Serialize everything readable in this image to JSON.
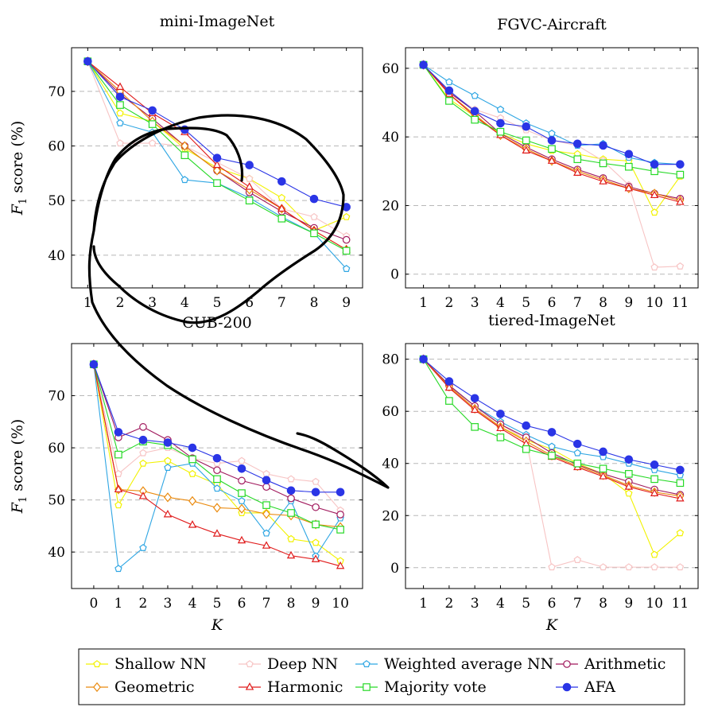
{
  "chart_data": [
    {
      "type": "line",
      "title": "mini-ImageNet",
      "ylabel": "F1 score (%)",
      "xlabel": "",
      "x": [
        1,
        2,
        3,
        4,
        5,
        6,
        7,
        8,
        9
      ],
      "xlim": [
        0.5,
        9.5
      ],
      "ylim": [
        34,
        78
      ],
      "yticks": [
        40,
        50,
        60,
        70
      ],
      "grid": "horizontal dashed",
      "series": [
        {
          "name": "Shallow NN",
          "values": [
            75.5,
            66,
            64.5,
            59.5,
            56,
            54,
            50.5,
            44.5,
            47
          ]
        },
        {
          "name": "Deep NN",
          "values": [
            75.5,
            60.5,
            60.5,
            60,
            57,
            54,
            48.5,
            47,
            43.5
          ]
        },
        {
          "name": "Weighted average NN",
          "values": [
            75.5,
            64.2,
            62.5,
            53.8,
            53.2,
            50.5,
            47,
            44,
            37.5
          ]
        },
        {
          "name": "Arithmetic",
          "values": [
            75.5,
            69.5,
            65,
            60,
            55.5,
            51.5,
            48,
            45,
            42.8
          ]
        },
        {
          "name": "Geometric",
          "values": [
            75.5,
            70,
            64.5,
            60,
            55.5,
            52,
            48.5,
            44.5,
            41
          ]
        },
        {
          "name": "Harmonic",
          "values": [
            75.5,
            70.8,
            66,
            62.5,
            56.5,
            52.5,
            48.5,
            44.5,
            41
          ]
        },
        {
          "name": "Majority vote",
          "values": [
            75.5,
            67.5,
            64,
            58.3,
            53.2,
            50,
            46.7,
            44,
            40.8
          ]
        },
        {
          "name": "AFA",
          "values": [
            75.5,
            69,
            66.5,
            63,
            57.8,
            56.5,
            53.5,
            50.3,
            48.8
          ]
        }
      ]
    },
    {
      "type": "line",
      "title": "FGVC-Aircraft",
      "ylabel": "",
      "xlabel": "",
      "x": [
        1,
        2,
        3,
        4,
        5,
        6,
        7,
        8,
        9,
        10,
        11
      ],
      "xlim": [
        0.3,
        11.7
      ],
      "ylim": [
        -4,
        66
      ],
      "yticks": [
        0,
        20,
        40,
        60
      ],
      "grid": "horizontal dashed",
      "series": [
        {
          "name": "Shallow NN",
          "values": [
            61,
            51,
            46,
            41,
            38,
            36,
            35,
            33.5,
            33,
            18,
            28.5
          ]
        },
        {
          "name": "Deep NN",
          "values": [
            61,
            53,
            48,
            45.5,
            42,
            39,
            37.5,
            33,
            26,
            2,
            2.3
          ]
        },
        {
          "name": "Weighted average NN",
          "values": [
            61,
            56,
            52,
            48,
            44,
            41,
            37.5,
            38,
            34,
            32.5,
            32
          ]
        },
        {
          "name": "Arithmetic",
          "values": [
            61,
            53,
            47.5,
            41,
            37,
            33.5,
            30.5,
            28,
            25.5,
            23.5,
            22
          ]
        },
        {
          "name": "Geometric",
          "values": [
            61,
            52.5,
            46.5,
            40.5,
            36.5,
            33,
            30,
            27.5,
            25,
            23.5,
            21.5
          ]
        },
        {
          "name": "Harmonic",
          "values": [
            61,
            52.5,
            46,
            40.5,
            36,
            33,
            29.5,
            27,
            25,
            23,
            21
          ]
        },
        {
          "name": "Majority vote",
          "values": [
            61,
            50.5,
            45,
            41.5,
            39,
            36.5,
            33.5,
            32.3,
            31.3,
            30,
            29
          ]
        },
        {
          "name": "AFA",
          "values": [
            61,
            53.5,
            47.5,
            44,
            43,
            39,
            38,
            37.5,
            35,
            32,
            32
          ]
        }
      ]
    },
    {
      "type": "line",
      "title": "CUB-200",
      "ylabel": "F1 score (%)",
      "xlabel": "K",
      "x": [
        0,
        1,
        2,
        3,
        4,
        5,
        6,
        7,
        8,
        9,
        10
      ],
      "xlim": [
        -0.9,
        10.9
      ],
      "ylim": [
        33,
        80
      ],
      "yticks": [
        40,
        50,
        60,
        70
      ],
      "grid": "horizontal dashed",
      "series": [
        {
          "name": "Shallow NN",
          "values": [
            76,
            49,
            57,
            57.5,
            55,
            53,
            47.5,
            47.5,
            42.5,
            41.8,
            38.3
          ]
        },
        {
          "name": "Deep NN",
          "values": [
            76,
            55,
            59,
            60,
            58,
            57,
            57.5,
            55,
            54,
            53.5,
            48
          ]
        },
        {
          "name": "Weighted average NN",
          "values": [
            76,
            36.8,
            40.8,
            56.2,
            57,
            52.2,
            49.8,
            43.6,
            49.8,
            39.2,
            46.5
          ]
        },
        {
          "name": "Arithmetic",
          "values": [
            76,
            62,
            64,
            61.5,
            58,
            55.7,
            53.7,
            52.5,
            50.3,
            48.6,
            47.2
          ]
        },
        {
          "name": "Geometric",
          "values": [
            76,
            52,
            51.7,
            50.5,
            49.8,
            48.5,
            48.3,
            47.3,
            47,
            45.3,
            44.8
          ]
        },
        {
          "name": "Harmonic",
          "values": [
            76,
            52,
            50.7,
            47.2,
            45.2,
            43.5,
            42.2,
            41.2,
            39.3,
            38.6,
            37.3
          ]
        },
        {
          "name": "Majority vote",
          "values": [
            76,
            58.7,
            61.2,
            60.5,
            57.8,
            54,
            51.3,
            49,
            47.5,
            45.3,
            44.3
          ]
        },
        {
          "name": "AFA",
          "values": [
            76,
            63,
            61.5,
            61,
            60,
            58,
            56,
            53.8,
            51.8,
            51.5,
            51.5
          ]
        }
      ]
    },
    {
      "type": "line",
      "title": "tiered-ImageNet",
      "ylabel": "",
      "xlabel": "K",
      "x": [
        1,
        2,
        3,
        4,
        5,
        6,
        7,
        8,
        9,
        10,
        11
      ],
      "xlim": [
        0.3,
        11.7
      ],
      "ylim": [
        -8,
        86
      ],
      "yticks": [
        0,
        20,
        40,
        60,
        80
      ],
      "grid": "horizontal dashed",
      "series": [
        {
          "name": "Shallow NN",
          "values": [
            80,
            70,
            61,
            54,
            49,
            45.5,
            40,
            36,
            28.5,
            5,
            13.3
          ]
        },
        {
          "name": "Deep NN",
          "values": [
            80,
            70,
            61,
            55,
            49,
            0.2,
            3,
            0.2,
            0.2,
            0.2,
            0.2
          ]
        },
        {
          "name": "Weighted average NN",
          "values": [
            80,
            70,
            62,
            56,
            51,
            46.5,
            44,
            42.5,
            40,
            37.5,
            35.5
          ]
        },
        {
          "name": "Arithmetic",
          "values": [
            80,
            70,
            62,
            55,
            50,
            44,
            39.5,
            36,
            33,
            30,
            28
          ]
        },
        {
          "name": "Geometric",
          "values": [
            80,
            69.5,
            61,
            54,
            48.5,
            43,
            39,
            35.5,
            31.5,
            29,
            27.5
          ]
        },
        {
          "name": "Harmonic",
          "values": [
            80,
            69,
            60.5,
            53.5,
            47.5,
            42.5,
            38.5,
            35,
            31,
            28.5,
            26.5
          ]
        },
        {
          "name": "Majority vote",
          "values": [
            80,
            64,
            54,
            50,
            45.5,
            43,
            40,
            38,
            36,
            34,
            32.5
          ]
        },
        {
          "name": "AFA",
          "values": [
            80,
            71.5,
            65,
            59,
            54.5,
            52,
            47.5,
            44.5,
            41.5,
            39.5,
            37.5
          ]
        }
      ]
    }
  ],
  "legend": {
    "placement": "bottom",
    "entries": [
      {
        "name": "Shallow NN",
        "color": "#f2f200",
        "marker": "pentagon"
      },
      {
        "name": "Deep NN",
        "color": "#f7c4c4",
        "marker": "pentagon"
      },
      {
        "name": "Weighted average NN",
        "color": "#2fa6e3",
        "marker": "pentagon"
      },
      {
        "name": "Arithmetic",
        "color": "#a0185c",
        "marker": "circle"
      },
      {
        "name": "Geometric",
        "color": "#ea8a0e",
        "marker": "diamond"
      },
      {
        "name": "Harmonic",
        "color": "#e01b1b",
        "marker": "triangle"
      },
      {
        "name": "Majority vote",
        "color": "#27d927",
        "marker": "square"
      },
      {
        "name": "AFA",
        "color": "#2a35e6",
        "marker": "dot"
      }
    ]
  },
  "colors": {
    "Shallow NN": "#f2f200",
    "Deep NN": "#f7c4c4",
    "Weighted average NN": "#2fa6e3",
    "Arithmetic": "#a0185c",
    "Geometric": "#ea8a0e",
    "Harmonic": "#e01b1b",
    "Majority vote": "#27d927",
    "AFA": "#2a35e6",
    "annotation_stroke": "#000000"
  }
}
